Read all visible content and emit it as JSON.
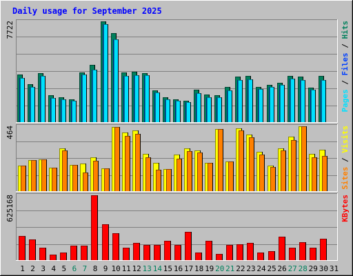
{
  "chart_data": {
    "type": "bar",
    "title": "Daily usage for September 2025",
    "days": [
      "1",
      "2",
      "3",
      "4",
      "5",
      "6",
      "7",
      "8",
      "9",
      "10",
      "11",
      "12",
      "13",
      "14",
      "15",
      "16",
      "17",
      "18",
      "19",
      "20",
      "21",
      "22",
      "23",
      "24",
      "25",
      "26",
      "27",
      "28",
      "29",
      "30",
      "31"
    ],
    "weekend_days": [
      6,
      7,
      13,
      14,
      20,
      21,
      27,
      28
    ],
    "colors": {
      "hits": "#00805c",
      "files": "#0040ff",
      "pages": "#00e0ff",
      "visits": "#ffff00",
      "sites": "#ff8000",
      "kbytes": "#ff0000",
      "title": "#0000ff",
      "weekend": "#00805c"
    },
    "panels": {
      "top": {
        "max_label": "7722",
        "ymax": 7722,
        "axis_labels": [
          {
            "text": "Pages",
            "color": "#00e0ff"
          },
          {
            "text": " / ",
            "color": "#000000"
          },
          {
            "text": "Files",
            "color": "#0040ff"
          },
          {
            "text": " / ",
            "color": "#000000"
          },
          {
            "text": "Hits",
            "color": "#00805c"
          }
        ],
        "series": [
          {
            "key": "hits",
            "values": [
              3640,
              2890,
              3740,
              2080,
              1930,
              1770,
              3830,
              4370,
              7722,
              6810,
              3830,
              3840,
              3780,
              2440,
              1900,
              1770,
              1620,
              2480,
              2130,
              2070,
              2720,
              3510,
              3520,
              2690,
              2860,
              3000,
              3570,
              3510,
              2630,
              3530
            ]
          },
          {
            "key": "files",
            "values": [
              3380,
              2710,
              3520,
              1860,
              1750,
              1620,
              3640,
              4020,
              7520,
              6340,
              3560,
              3610,
              3590,
              2280,
              1760,
              1620,
              1530,
              2240,
              1910,
              1910,
              2440,
              3220,
              3280,
              2520,
              2690,
              2830,
              3330,
              3240,
              2460,
              3230
            ]
          },
          {
            "key": "pages",
            "values": [
              3380,
              2710,
              3520,
              1860,
              1750,
              1620,
              3640,
              4020,
              7520,
              6340,
              3560,
              3610,
              3590,
              2280,
              1760,
              1620,
              1530,
              2240,
              1910,
              1910,
              2440,
              3220,
              3280,
              2520,
              2690,
              2830,
              3330,
              3240,
              2460,
              3230
            ]
          }
        ]
      },
      "middle": {
        "max_label": "464",
        "ymax": 464,
        "axis_labels": [
          {
            "text": "Sites",
            "color": "#ff8000"
          },
          {
            "text": " / ",
            "color": "#000000"
          },
          {
            "text": "Visits",
            "color": "#ffff00"
          }
        ],
        "series": [
          {
            "key": "visits",
            "values": [
              182,
              222,
              225,
              167,
              305,
              187,
              198,
              240,
              164,
              461,
              418,
              432,
              269,
              201,
              159,
              262,
              306,
              293,
              203,
              443,
              213,
              451,
              406,
              283,
              183,
              305,
              392,
              463,
              266,
              296
            ]
          },
          {
            "key": "sites",
            "values": [
              182,
              222,
              225,
              167,
              292,
              187,
              131,
              216,
              164,
              461,
              396,
              411,
              240,
              151,
              159,
              232,
              288,
              276,
              203,
              443,
              213,
              435,
              386,
              263,
              174,
              290,
              364,
              463,
              242,
              251
            ]
          }
        ]
      },
      "bottom": {
        "max_label": "625168",
        "ymax": 625168,
        "axis_labels": [
          {
            "text": "KBytes",
            "color": "#ff0000"
          }
        ],
        "series": [
          {
            "key": "kbytes",
            "values": [
              231000,
              197000,
              119000,
              50000,
              71000,
              137000,
              137000,
              625168,
              348000,
              262000,
              122000,
              164000,
              143000,
              143000,
              185000,
              143000,
              272000,
              74000,
              185000,
              57000,
              143000,
              153000,
              164000,
              74000,
              88000,
              226000,
              122000,
              171000,
              122000,
              203000
            ]
          }
        ]
      }
    }
  }
}
